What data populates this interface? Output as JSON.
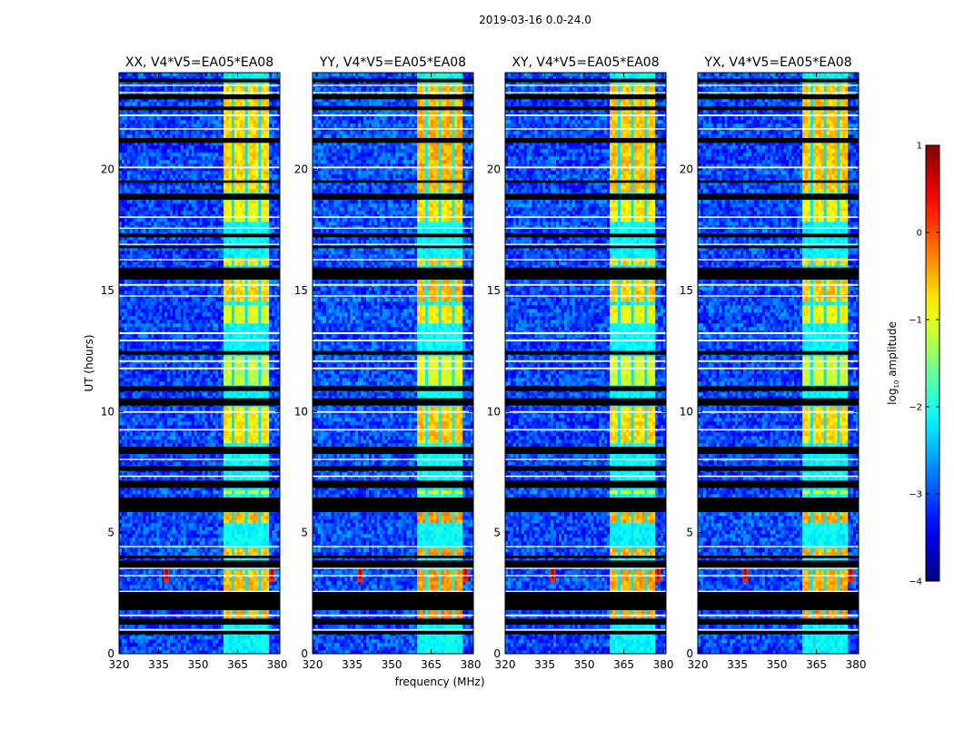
{
  "figure_title": "2019-03-16 0.0-24.0",
  "colors": {
    "background": "#ffffff",
    "axis": "#000000",
    "flag_white": "#ffffff",
    "flag_black": "#000000"
  },
  "chart_data": {
    "type": "heatmap",
    "suptitle": "2019-03-16 0.0-24.0",
    "xlabel": "frequency (MHz)",
    "ylabel": "UT (hours)",
    "xlim": [
      320,
      381
    ],
    "ylim": [
      0,
      24
    ],
    "xticks": [
      320,
      335,
      350,
      365,
      380
    ],
    "yticks": [
      0,
      5,
      10,
      15,
      20
    ],
    "colormap": "jet",
    "colorbar": {
      "label": "log10 amplitude",
      "label_base": "log",
      "label_sub": "10",
      "label_rest": " amplitude",
      "range": [
        -4,
        1
      ],
      "ticks": [
        -4,
        -3,
        -2,
        -1,
        0,
        1
      ],
      "tick_labels": [
        "−4",
        "−3",
        "−2",
        "−1",
        "0",
        "1"
      ]
    },
    "rfi_band_mhz": [
      360,
      377
    ],
    "rfi_channels_mhz": [
      360.5,
      365.5,
      370.5,
      375.5
    ],
    "spike_freqs_mhz": [
      338,
      378
    ],
    "spike_time_ut": 3.3,
    "panels": [
      {
        "title": "XX, V4*V5=EA05*EA08",
        "pol": "XX",
        "baseline": "V4*V5=EA05*EA08",
        "noise_log10": -3.05,
        "band_log10": -1.6
      },
      {
        "title": "YY, V4*V5=EA05*EA08",
        "pol": "YY",
        "baseline": "V4*V5=EA05*EA08",
        "noise_log10": -3.0,
        "band_log10": -1.4
      },
      {
        "title": "XY, V4*V5=EA05*EA08",
        "pol": "XY",
        "baseline": "V4*V5=EA05*EA08",
        "noise_log10": -3.05,
        "band_log10": -1.5
      },
      {
        "title": "YX, V4*V5=EA05*EA08",
        "pol": "YX",
        "baseline": "V4*V5=EA05*EA08",
        "noise_log10": -3.05,
        "band_log10": -1.5
      }
    ],
    "flagged_black_ut": [
      [
        0.8,
        1.0
      ],
      [
        1.2,
        1.45
      ],
      [
        1.8,
        2.55
      ],
      [
        3.55,
        3.85
      ],
      [
        3.95,
        4.05
      ],
      [
        5.85,
        6.45
      ],
      [
        6.85,
        7.15
      ],
      [
        7.55,
        7.75
      ],
      [
        8.25,
        8.55
      ],
      [
        10.25,
        10.55
      ],
      [
        10.85,
        11.05
      ],
      [
        12.35,
        12.5
      ],
      [
        15.45,
        15.95
      ],
      [
        16.75,
        16.85
      ],
      [
        17.2,
        17.35
      ],
      [
        18.75,
        19.0
      ],
      [
        19.45,
        19.55
      ],
      [
        21.1,
        21.3
      ],
      [
        22.45,
        22.6
      ],
      [
        22.9,
        23.1
      ],
      [
        23.6,
        23.75
      ]
    ],
    "flagged_white_ut": [
      [
        0.95,
        1.02
      ],
      [
        1.55,
        1.62
      ],
      [
        2.55,
        2.6
      ],
      [
        3.2,
        3.25
      ],
      [
        3.5,
        3.55
      ],
      [
        4.4,
        4.45
      ],
      [
        7.3,
        7.36
      ],
      [
        8.0,
        8.05
      ],
      [
        9.22,
        9.28
      ],
      [
        9.95,
        10.02
      ],
      [
        11.75,
        11.82
      ],
      [
        12.05,
        12.12
      ],
      [
        12.9,
        12.97
      ],
      [
        13.2,
        13.28
      ],
      [
        14.75,
        14.8
      ],
      [
        15.2,
        15.27
      ],
      [
        16.25,
        16.3
      ],
      [
        16.88,
        16.93
      ],
      [
        17.55,
        17.6
      ],
      [
        18.0,
        18.06
      ],
      [
        20.05,
        20.12
      ],
      [
        21.65,
        21.7
      ],
      [
        22.2,
        22.27
      ],
      [
        23.15,
        23.2
      ],
      [
        23.45,
        23.5
      ]
    ],
    "bright_segments_ut": [
      [
        1.3,
        1.8,
        1.15
      ],
      [
        2.6,
        3.5,
        1.05
      ],
      [
        4.1,
        4.35,
        1.0
      ],
      [
        5.45,
        5.85,
        1.05
      ],
      [
        6.6,
        6.8,
        0.5
      ],
      [
        8.7,
        10.25,
        0.8
      ],
      [
        11.1,
        12.35,
        0.4
      ],
      [
        13.7,
        14.4,
        0.6
      ],
      [
        14.5,
        15.45,
        0.9
      ],
      [
        16.0,
        16.3,
        0.8
      ],
      [
        17.8,
        18.7,
        0.7
      ],
      [
        19.0,
        21.1,
        0.9
      ],
      [
        21.3,
        23.5,
        0.9
      ]
    ]
  }
}
